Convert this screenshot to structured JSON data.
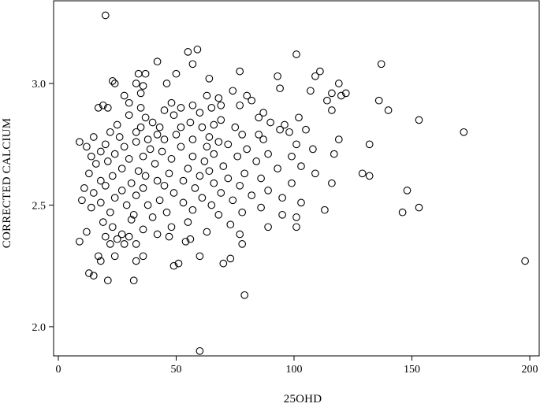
{
  "chart_data": {
    "type": "scatter",
    "xlabel": "25OHD",
    "ylabel": "CORRECTED CALCIUM",
    "xlim": [
      -2,
      204
    ],
    "ylim": [
      1.88,
      3.34
    ],
    "x_ticks": [
      0,
      50,
      100,
      150,
      200
    ],
    "x_tick_labels": [
      "0",
      "50",
      "100",
      "150",
      "200"
    ],
    "y_ticks": [
      2.0,
      2.5,
      3.0
    ],
    "y_tick_labels": [
      "2.0",
      "2.5",
      "3.0"
    ],
    "marker": "open-circle",
    "marker_color": "#000000",
    "grid": false,
    "series": [
      {
        "points": [
          [
            20,
            3.28
          ],
          [
            59,
            3.14
          ],
          [
            55,
            3.13
          ],
          [
            101,
            3.12
          ],
          [
            42,
            3.09
          ],
          [
            137,
            3.08
          ],
          [
            57,
            3.08
          ],
          [
            77,
            3.05
          ],
          [
            111,
            3.05
          ],
          [
            37,
            3.04
          ],
          [
            34,
            3.04
          ],
          [
            50,
            3.04
          ],
          [
            93,
            3.03
          ],
          [
            109,
            3.03
          ],
          [
            64,
            3.02
          ],
          [
            23,
            3.01
          ],
          [
            33,
            3.0
          ],
          [
            46,
            3.0
          ],
          [
            24,
            3.0
          ],
          [
            119,
            3.0
          ],
          [
            36,
            2.99
          ],
          [
            94,
            2.98
          ],
          [
            107,
            2.97
          ],
          [
            74,
            2.97
          ],
          [
            116,
            2.96
          ],
          [
            35,
            2.96
          ],
          [
            63,
            2.95
          ],
          [
            28,
            2.95
          ],
          [
            120,
            2.95
          ],
          [
            80,
            2.95
          ],
          [
            122,
            2.96
          ],
          [
            68,
            2.94
          ],
          [
            136,
            2.93
          ],
          [
            82,
            2.93
          ],
          [
            114,
            2.93
          ],
          [
            30,
            2.92
          ],
          [
            48,
            2.92
          ],
          [
            77,
            2.91
          ],
          [
            57,
            2.91
          ],
          [
            69,
            2.91
          ],
          [
            19,
            2.91
          ],
          [
            17,
            2.9
          ],
          [
            21,
            2.9
          ],
          [
            35,
            2.9
          ],
          [
            52,
            2.9
          ],
          [
            65,
            2.9
          ],
          [
            45,
            2.89
          ],
          [
            116,
            2.89
          ],
          [
            140,
            2.89
          ],
          [
            60,
            2.88
          ],
          [
            87,
            2.88
          ],
          [
            30,
            2.87
          ],
          [
            49,
            2.87
          ],
          [
            85,
            2.86
          ],
          [
            102,
            2.86
          ],
          [
            37,
            2.86
          ],
          [
            69,
            2.85
          ],
          [
            153,
            2.85
          ],
          [
            40,
            2.84
          ],
          [
            90,
            2.84
          ],
          [
            56,
            2.84
          ],
          [
            25,
            2.83
          ],
          [
            66,
            2.83
          ],
          [
            96,
            2.83
          ],
          [
            52,
            2.82
          ],
          [
            43,
            2.82
          ],
          [
            35,
            2.82
          ],
          [
            75,
            2.82
          ],
          [
            61,
            2.82
          ],
          [
            94,
            2.81
          ],
          [
            105,
            2.81
          ],
          [
            98,
            2.8
          ],
          [
            22,
            2.8
          ],
          [
            172,
            2.8
          ],
          [
            33,
            2.8
          ],
          [
            50,
            2.79
          ],
          [
            42,
            2.79
          ],
          [
            78,
            2.79
          ],
          [
            85,
            2.79
          ],
          [
            15,
            2.78
          ],
          [
            26,
            2.78
          ],
          [
            64,
            2.78
          ],
          [
            38,
            2.77
          ],
          [
            45,
            2.77
          ],
          [
            87,
            2.77
          ],
          [
            57,
            2.77
          ],
          [
            68,
            2.76
          ],
          [
            119,
            2.77
          ],
          [
            9,
            2.76
          ],
          [
            33,
            2.76
          ],
          [
            20,
            2.75
          ],
          [
            72,
            2.75
          ],
          [
            101,
            2.75
          ],
          [
            132,
            2.75
          ],
          [
            12,
            2.74
          ],
          [
            28,
            2.74
          ],
          [
            52,
            2.74
          ],
          [
            63,
            2.74
          ],
          [
            39,
            2.73
          ],
          [
            80,
            2.73
          ],
          [
            108,
            2.73
          ],
          [
            18,
            2.72
          ],
          [
            44,
            2.72
          ],
          [
            24,
            2.71
          ],
          [
            66,
            2.71
          ],
          [
            89,
            2.71
          ],
          [
            117,
            2.71
          ],
          [
            14,
            2.7
          ],
          [
            36,
            2.7
          ],
          [
            57,
            2.7
          ],
          [
            76,
            2.7
          ],
          [
            99,
            2.7
          ],
          [
            30,
            2.69
          ],
          [
            48,
            2.69
          ],
          [
            62,
            2.68
          ],
          [
            84,
            2.68
          ],
          [
            21,
            2.68
          ],
          [
            16,
            2.67
          ],
          [
            41,
            2.67
          ],
          [
            70,
            2.66
          ],
          [
            103,
            2.66
          ],
          [
            93,
            2.65
          ],
          [
            27,
            2.65
          ],
          [
            55,
            2.65
          ],
          [
            34,
            2.64
          ],
          [
            64,
            2.64
          ],
          [
            13,
            2.63
          ],
          [
            47,
            2.63
          ],
          [
            79,
            2.63
          ],
          [
            109,
            2.63
          ],
          [
            129,
            2.63
          ],
          [
            23,
            2.62
          ],
          [
            37,
            2.62
          ],
          [
            60,
            2.62
          ],
          [
            72,
            2.61
          ],
          [
            132,
            2.62
          ],
          [
            86,
            2.61
          ],
          [
            18,
            2.6
          ],
          [
            42,
            2.6
          ],
          [
            53,
            2.6
          ],
          [
            31,
            2.59
          ],
          [
            66,
            2.59
          ],
          [
            99,
            2.59
          ],
          [
            116,
            2.59
          ],
          [
            20,
            2.58
          ],
          [
            45,
            2.58
          ],
          [
            77,
            2.58
          ],
          [
            11,
            2.57
          ],
          [
            36,
            2.57
          ],
          [
            58,
            2.57
          ],
          [
            89,
            2.56
          ],
          [
            27,
            2.56
          ],
          [
            148,
            2.56
          ],
          [
            49,
            2.55
          ],
          [
            15,
            2.55
          ],
          [
            69,
            2.55
          ],
          [
            82,
            2.54
          ],
          [
            33,
            2.54
          ],
          [
            24,
            2.53
          ],
          [
            61,
            2.53
          ],
          [
            95,
            2.53
          ],
          [
            43,
            2.52
          ],
          [
            10,
            2.52
          ],
          [
            74,
            2.52
          ],
          [
            18,
            2.51
          ],
          [
            53,
            2.51
          ],
          [
            103,
            2.51
          ],
          [
            38,
            2.5
          ],
          [
            65,
            2.5
          ],
          [
            29,
            2.5
          ],
          [
            86,
            2.49
          ],
          [
            14,
            2.49
          ],
          [
            57,
            2.48
          ],
          [
            113,
            2.48
          ],
          [
            153,
            2.49
          ],
          [
            22,
            2.47
          ],
          [
            46,
            2.47
          ],
          [
            78,
            2.47
          ],
          [
            146,
            2.47
          ],
          [
            32,
            2.46
          ],
          [
            68,
            2.46
          ],
          [
            95,
            2.46
          ],
          [
            40,
            2.45
          ],
          [
            31,
            2.44
          ],
          [
            101,
            2.45
          ],
          [
            19,
            2.43
          ],
          [
            55,
            2.43
          ],
          [
            73,
            2.42
          ],
          [
            23,
            2.41
          ],
          [
            48,
            2.41
          ],
          [
            89,
            2.41
          ],
          [
            101,
            2.41
          ],
          [
            36,
            2.4
          ],
          [
            63,
            2.39
          ],
          [
            12,
            2.39
          ],
          [
            27,
            2.38
          ],
          [
            42,
            2.38
          ],
          [
            77,
            2.38
          ],
          [
            20,
            2.37
          ],
          [
            30,
            2.37
          ],
          [
            56,
            2.36
          ],
          [
            25,
            2.36
          ],
          [
            47,
            2.37
          ],
          [
            9,
            2.35
          ],
          [
            22,
            2.34
          ],
          [
            33,
            2.34
          ],
          [
            54,
            2.35
          ],
          [
            78,
            2.34
          ],
          [
            28,
            2.34
          ],
          [
            60,
            2.29
          ],
          [
            17,
            2.29
          ],
          [
            24,
            2.29
          ],
          [
            36,
            2.29
          ],
          [
            73,
            2.28
          ],
          [
            18,
            2.27
          ],
          [
            33,
            2.27
          ],
          [
            198,
            2.27
          ],
          [
            51,
            2.26
          ],
          [
            49,
            2.25
          ],
          [
            13,
            2.22
          ],
          [
            70,
            2.26
          ],
          [
            15,
            2.21
          ],
          [
            21,
            2.19
          ],
          [
            32,
            2.19
          ],
          [
            79,
            2.13
          ],
          [
            60,
            1.9
          ]
        ]
      }
    ]
  }
}
